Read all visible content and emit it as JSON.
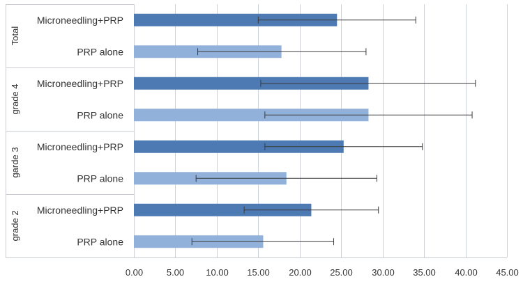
{
  "chart_data": {
    "type": "bar",
    "orientation": "horizontal",
    "title": "",
    "xlabel": "",
    "ylabel": "",
    "xlim": [
      0,
      45
    ],
    "x_ticks": [
      "0.00",
      "5.00",
      "10.00",
      "15.00",
      "20.00",
      "25.00",
      "30.00",
      "35.00",
      "40.00",
      "45.00"
    ],
    "grid": true,
    "legend": "none",
    "colors": {
      "Microneedling+PRP": "#4e7ab3",
      "PRP alone": "#92b1da"
    },
    "groups": [
      {
        "name": "Total",
        "bars": [
          {
            "label": "Microneedling+PRP",
            "value": 24.5,
            "err_low": 15.0,
            "err_high": 34.0
          },
          {
            "label": "PRP alone",
            "value": 17.8,
            "err_low": 7.7,
            "err_high": 28.0
          }
        ]
      },
      {
        "name": "grade 4",
        "bars": [
          {
            "label": "Microneedling+PRP",
            "value": 28.3,
            "err_low": 15.3,
            "err_high": 41.2
          },
          {
            "label": "PRP alone",
            "value": 28.3,
            "err_low": 15.8,
            "err_high": 40.8
          }
        ]
      },
      {
        "name": "garde 3",
        "bars": [
          {
            "label": "Microneedling+PRP",
            "value": 25.3,
            "err_low": 15.8,
            "err_high": 34.8
          },
          {
            "label": "PRP alone",
            "value": 18.4,
            "err_low": 7.5,
            "err_high": 29.3
          }
        ]
      },
      {
        "name": "grade 2",
        "bars": [
          {
            "label": "Microneedling+PRP",
            "value": 21.4,
            "err_low": 13.3,
            "err_high": 29.5
          },
          {
            "label": "PRP alone",
            "value": 15.6,
            "err_low": 7.0,
            "err_high": 24.1
          }
        ]
      }
    ]
  }
}
